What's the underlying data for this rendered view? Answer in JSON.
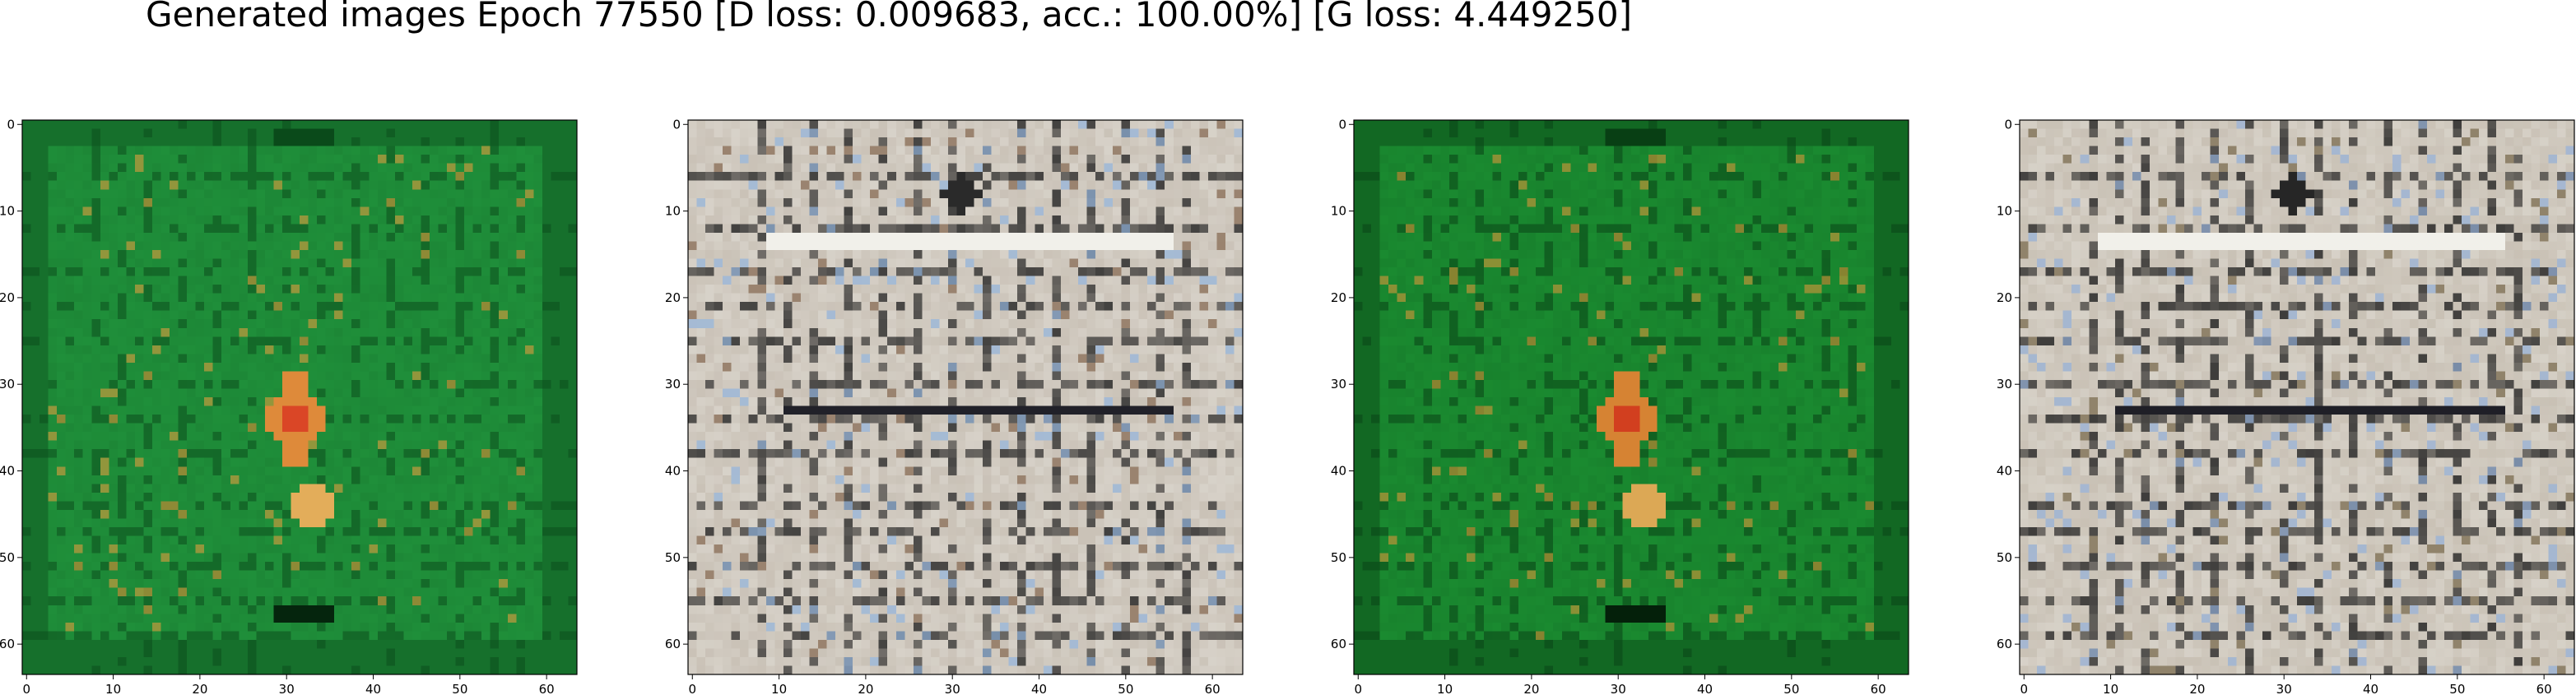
{
  "figure": {
    "title": "Generated images Epoch 77550 [D loss: 0.009683, acc.: 100.00%] [G loss: 4.449250]"
  },
  "chart_data": [
    {
      "type": "heatmap",
      "description_of_content": "generated image sample, green-tinted",
      "palette": {
        "base": "#1f8f3a",
        "dark": "#0a4a1a",
        "accent": "#e0a040",
        "hot": "#d83020"
      },
      "xlim": [
        0,
        63
      ],
      "ylim": [
        63,
        0
      ],
      "xticks": [
        "0",
        "10",
        "20",
        "30",
        "40",
        "50",
        "60"
      ],
      "yticks": [
        "0",
        "10",
        "20",
        "30",
        "40",
        "50",
        "60"
      ]
    },
    {
      "type": "heatmap",
      "description_of_content": "generated image sample, grey/beige",
      "palette": {
        "base": "#c9c1b6",
        "dark": "#2a2a2a",
        "accent": "#8fb0d8",
        "hot": "#7a5a40"
      },
      "xlim": [
        0,
        63
      ],
      "ylim": [
        63,
        0
      ],
      "xticks": [
        "0",
        "10",
        "20",
        "30",
        "40",
        "50",
        "60"
      ],
      "yticks": [
        "0",
        "10",
        "20",
        "30",
        "40",
        "50",
        "60"
      ]
    },
    {
      "type": "heatmap",
      "description_of_content": "generated image sample, green-tinted",
      "palette": {
        "base": "#1a8a30",
        "dark": "#083f14",
        "accent": "#d89a3a",
        "hot": "#d02818"
      },
      "xlim": [
        0,
        63
      ],
      "ylim": [
        63,
        0
      ],
      "xticks": [
        "0",
        "10",
        "20",
        "30",
        "40",
        "50",
        "60"
      ],
      "yticks": [
        "0",
        "10",
        "20",
        "30",
        "40",
        "50",
        "60"
      ]
    },
    {
      "type": "heatmap",
      "description_of_content": "generated image sample, grey/beige",
      "palette": {
        "base": "#c8c0b4",
        "dark": "#262626",
        "accent": "#90acd4",
        "hot": "#6a5a3a"
      },
      "xlim": [
        0,
        63
      ],
      "ylim": [
        63,
        0
      ],
      "xticks": [
        "0",
        "10",
        "20",
        "30",
        "40",
        "50",
        "60"
      ],
      "yticks": [
        "0",
        "10",
        "20",
        "30",
        "40",
        "50",
        "60"
      ]
    }
  ]
}
